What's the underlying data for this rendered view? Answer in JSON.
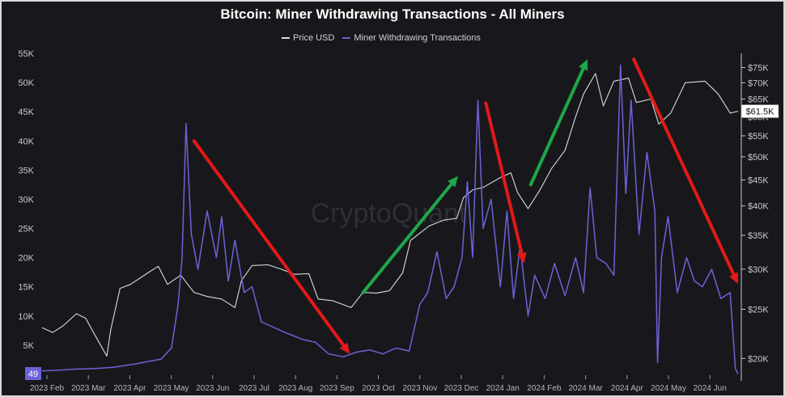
{
  "chart_data": {
    "type": "line",
    "title": "Bitcoin: Miner Withdrawing Transactions - All Miners",
    "watermark": "CryptoQuant",
    "legend_position": "top-center",
    "grid": false,
    "colors": {
      "background": "#18181c",
      "price": "#d9d9de",
      "miner": "#6b63d6",
      "up_arrow": "#1fa64a",
      "down_arrow": "#e31919"
    },
    "x_ticks": [
      "2023 Feb",
      "2023 Mar",
      "2023 Apr",
      "2023 May",
      "2023 Jun",
      "2023 Jul",
      "2023 Aug",
      "2023 Sep",
      "2023 Oct",
      "2023 Nov",
      "2023 Dec",
      "2024 Jan",
      "2024 Feb",
      "2024 Mar",
      "2024 Apr",
      "2024 May",
      "2024 Jun"
    ],
    "y_left": {
      "ylim": [
        0,
        55000
      ],
      "tick_labels": [
        "5K",
        "10K",
        "15K",
        "20K",
        "25K",
        "30K",
        "35K",
        "40K",
        "45K",
        "50K",
        "55K"
      ],
      "tick_values": [
        5000,
        10000,
        15000,
        20000,
        25000,
        30000,
        35000,
        40000,
        45000,
        50000,
        55000
      ],
      "current_value_label": "49"
    },
    "y_right": {
      "scale": "log",
      "tick_labels": [
        "$20K",
        "$25K",
        "$30K",
        "$35K",
        "$40K",
        "$45K",
        "$50K",
        "$55K",
        "$60K",
        "$65K",
        "$70K",
        "$75K"
      ],
      "tick_values": [
        20000,
        25000,
        30000,
        35000,
        40000,
        45000,
        50000,
        55000,
        60000,
        65000,
        70000,
        75000
      ],
      "current_value_label": "$61.5K"
    },
    "series": [
      {
        "name": "Price USD",
        "axis": "right",
        "points": [
          [
            "2023-01-20",
            23000
          ],
          [
            "2023-01-28",
            22500
          ],
          [
            "2023-02-05",
            23200
          ],
          [
            "2023-02-15",
            24500
          ],
          [
            "2023-02-22",
            24000
          ],
          [
            "2023-03-02",
            22000
          ],
          [
            "2023-03-10",
            20200
          ],
          [
            "2023-03-13",
            22800
          ],
          [
            "2023-03-20",
            27500
          ],
          [
            "2023-03-28",
            28000
          ],
          [
            "2023-04-10",
            29500
          ],
          [
            "2023-04-18",
            30400
          ],
          [
            "2023-04-25",
            28000
          ],
          [
            "2023-05-05",
            29200
          ],
          [
            "2023-05-15",
            27000
          ],
          [
            "2023-05-25",
            26500
          ],
          [
            "2023-06-05",
            26200
          ],
          [
            "2023-06-15",
            25200
          ],
          [
            "2023-06-20",
            28500
          ],
          [
            "2023-06-28",
            30500
          ],
          [
            "2023-07-10",
            30600
          ],
          [
            "2023-07-20",
            30000
          ],
          [
            "2023-07-30",
            29300
          ],
          [
            "2023-08-10",
            29400
          ],
          [
            "2023-08-17",
            26200
          ],
          [
            "2023-08-28",
            26000
          ],
          [
            "2023-09-11",
            25200
          ],
          [
            "2023-09-20",
            27000
          ],
          [
            "2023-09-30",
            26900
          ],
          [
            "2023-10-10",
            27200
          ],
          [
            "2023-10-20",
            29500
          ],
          [
            "2023-10-26",
            34200
          ],
          [
            "2023-11-09",
            36500
          ],
          [
            "2023-11-20",
            37500
          ],
          [
            "2023-11-30",
            37800
          ],
          [
            "2023-12-05",
            41500
          ],
          [
            "2023-12-12",
            43000
          ],
          [
            "2023-12-20",
            43500
          ],
          [
            "2024-01-02",
            45500
          ],
          [
            "2024-01-10",
            46500
          ],
          [
            "2024-01-15",
            42500
          ],
          [
            "2024-01-23",
            39500
          ],
          [
            "2024-02-01",
            43000
          ],
          [
            "2024-02-10",
            47500
          ],
          [
            "2024-02-20",
            51500
          ],
          [
            "2024-02-28",
            60000
          ],
          [
            "2024-03-05",
            66500
          ],
          [
            "2024-03-14",
            73000
          ],
          [
            "2024-03-20",
            63000
          ],
          [
            "2024-03-28",
            70500
          ],
          [
            "2024-04-08",
            71500
          ],
          [
            "2024-04-14",
            64000
          ],
          [
            "2024-04-25",
            65000
          ],
          [
            "2024-05-01",
            58000
          ],
          [
            "2024-05-10",
            61000
          ],
          [
            "2024-05-21",
            70000
          ],
          [
            "2024-06-05",
            70500
          ],
          [
            "2024-06-15",
            66500
          ],
          [
            "2024-06-24",
            61000
          ],
          [
            "2024-06-30",
            61500
          ]
        ]
      },
      {
        "name": "Miner Withdrawing Transactions",
        "axis": "left",
        "points": [
          [
            "2023-01-20",
            600
          ],
          [
            "2023-02-01",
            700
          ],
          [
            "2023-02-15",
            900
          ],
          [
            "2023-03-01",
            1000
          ],
          [
            "2023-03-15",
            1200
          ],
          [
            "2023-04-01",
            1800
          ],
          [
            "2023-04-10",
            2200
          ],
          [
            "2023-04-20",
            2600
          ],
          [
            "2023-04-28",
            4500
          ],
          [
            "2023-05-03",
            12000
          ],
          [
            "2023-05-06",
            20000
          ],
          [
            "2023-05-09",
            43000
          ],
          [
            "2023-05-13",
            24000
          ],
          [
            "2023-05-18",
            18000
          ],
          [
            "2023-05-25",
            28000
          ],
          [
            "2023-06-01",
            20000
          ],
          [
            "2023-06-05",
            27000
          ],
          [
            "2023-06-10",
            16000
          ],
          [
            "2023-06-15",
            23000
          ],
          [
            "2023-06-22",
            14000
          ],
          [
            "2023-06-28",
            15000
          ],
          [
            "2023-07-05",
            9000
          ],
          [
            "2023-07-15",
            8000
          ],
          [
            "2023-07-25",
            7000
          ],
          [
            "2023-08-05",
            6000
          ],
          [
            "2023-08-15",
            5500
          ],
          [
            "2023-08-25",
            3500
          ],
          [
            "2023-09-05",
            3000
          ],
          [
            "2023-09-15",
            3800
          ],
          [
            "2023-09-25",
            4200
          ],
          [
            "2023-10-05",
            3500
          ],
          [
            "2023-10-15",
            4500
          ],
          [
            "2023-10-25",
            4000
          ],
          [
            "2023-11-02",
            12000
          ],
          [
            "2023-11-08",
            14000
          ],
          [
            "2023-11-15",
            21000
          ],
          [
            "2023-11-22",
            13000
          ],
          [
            "2023-11-28",
            15000
          ],
          [
            "2023-12-04",
            20000
          ],
          [
            "2023-12-08",
            33000
          ],
          [
            "2023-12-12",
            20000
          ],
          [
            "2023-12-16",
            47000
          ],
          [
            "2023-12-20",
            25000
          ],
          [
            "2023-12-26",
            30000
          ],
          [
            "2024-01-02",
            15000
          ],
          [
            "2024-01-07",
            28000
          ],
          [
            "2024-01-12",
            13000
          ],
          [
            "2024-01-17",
            22000
          ],
          [
            "2024-01-23",
            10000
          ],
          [
            "2024-01-28",
            17000
          ],
          [
            "2024-02-05",
            13000
          ],
          [
            "2024-02-12",
            19000
          ],
          [
            "2024-02-20",
            13500
          ],
          [
            "2024-02-28",
            20000
          ],
          [
            "2024-03-05",
            14000
          ],
          [
            "2024-03-10",
            32000
          ],
          [
            "2024-03-15",
            20000
          ],
          [
            "2024-03-22",
            19000
          ],
          [
            "2024-03-28",
            17000
          ],
          [
            "2024-04-02",
            53000
          ],
          [
            "2024-04-06",
            31000
          ],
          [
            "2024-04-10",
            47000
          ],
          [
            "2024-04-16",
            24000
          ],
          [
            "2024-04-22",
            38000
          ],
          [
            "2024-04-28",
            28000
          ],
          [
            "2024-04-30",
            2000
          ],
          [
            "2024-05-03",
            20000
          ],
          [
            "2024-05-08",
            27000
          ],
          [
            "2024-05-15",
            14000
          ],
          [
            "2024-05-22",
            20000
          ],
          [
            "2024-05-28",
            16000
          ],
          [
            "2024-06-03",
            15000
          ],
          [
            "2024-06-10",
            18000
          ],
          [
            "2024-06-17",
            13000
          ],
          [
            "2024-06-24",
            14000
          ],
          [
            "2024-06-28",
            1000
          ],
          [
            "2024-06-30",
            49
          ]
        ]
      }
    ],
    "annotations": [
      {
        "kind": "arrow",
        "color": "red",
        "from": [
          "2023-05-15",
          40000
        ],
        "to": [
          "2023-09-10",
          3500
        ]
      },
      {
        "kind": "arrow",
        "color": "green",
        "from": [
          "2023-09-20",
          14000
        ],
        "to": [
          "2023-12-01",
          34000
        ]
      },
      {
        "kind": "arrow",
        "color": "red",
        "from": [
          "2023-12-22",
          46500
        ],
        "to": [
          "2024-01-20",
          19000
        ]
      },
      {
        "kind": "arrow",
        "color": "green",
        "from": [
          "2024-01-25",
          32500
        ],
        "to": [
          "2024-03-08",
          54000
        ]
      },
      {
        "kind": "arrow",
        "color": "red",
        "from": [
          "2024-04-12",
          54000
        ],
        "to": [
          "2024-06-30",
          15500
        ]
      }
    ]
  }
}
